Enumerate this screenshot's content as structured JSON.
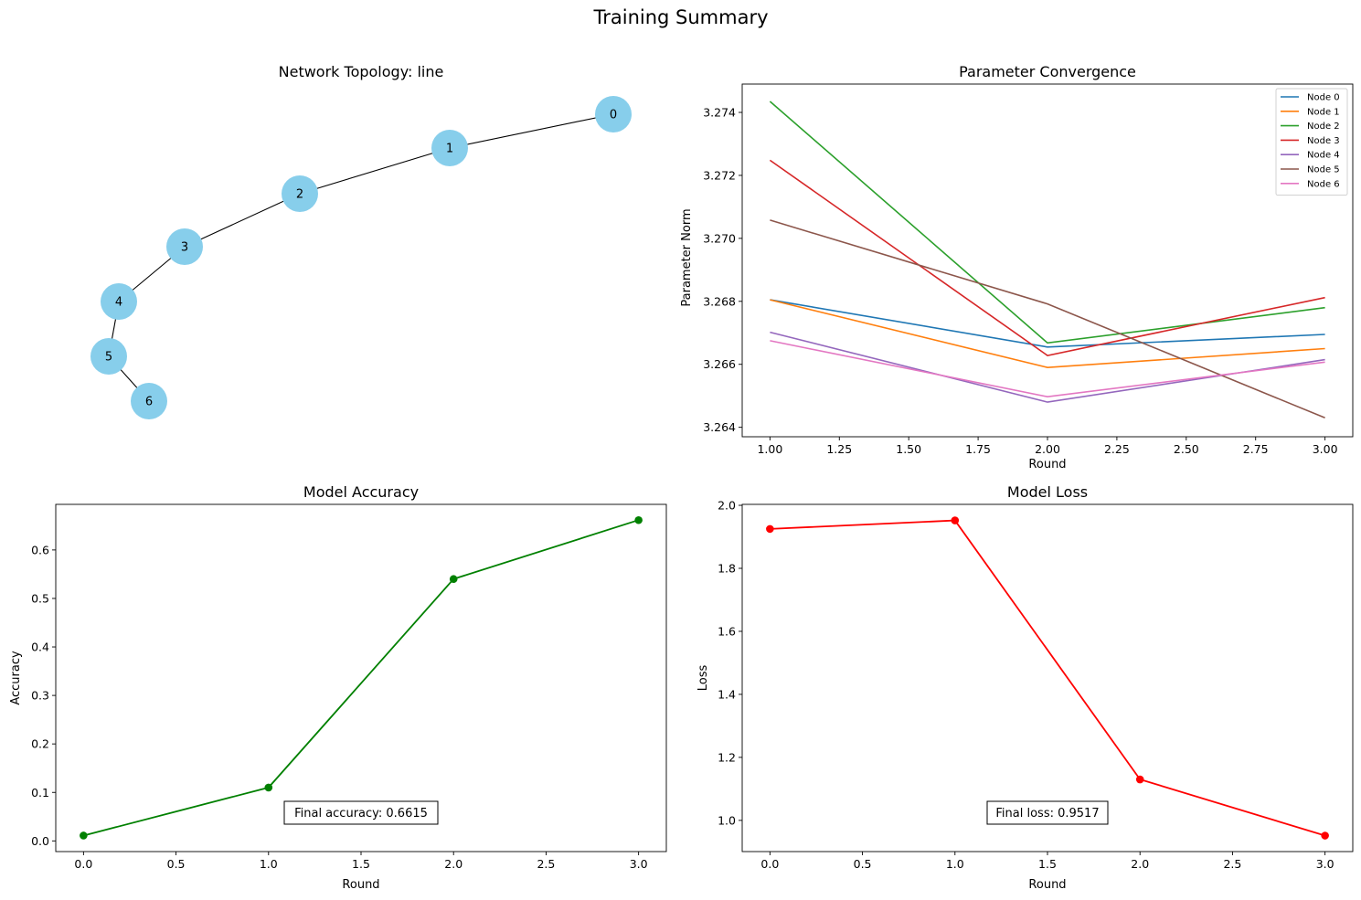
{
  "figure_title": "Training Summary",
  "chart_data": [
    {
      "type": "network",
      "title": "Network Topology: line",
      "nodes": [
        "0",
        "1",
        "2",
        "3",
        "4",
        "5",
        "6"
      ],
      "edges": [
        [
          "0",
          "1"
        ],
        [
          "1",
          "2"
        ],
        [
          "2",
          "3"
        ],
        [
          "3",
          "4"
        ],
        [
          "4",
          "5"
        ],
        [
          "5",
          "6"
        ]
      ],
      "node_color": "#87ceeb"
    },
    {
      "type": "line",
      "title": "Parameter Convergence",
      "xlabel": "Round",
      "ylabel": "Parameter Norm",
      "x": [
        1,
        2,
        3
      ],
      "xlim": [
        0.9,
        3.1
      ],
      "ylim": [
        3.2637,
        3.2749
      ],
      "xticks": [
        "1.00",
        "1.25",
        "1.50",
        "1.75",
        "2.00",
        "2.25",
        "2.50",
        "2.75",
        "3.00"
      ],
      "yticks": [
        "3.264",
        "3.266",
        "3.268",
        "3.270",
        "3.272",
        "3.274"
      ],
      "legend_position": "upper right",
      "series": [
        {
          "name": "Node 0",
          "color": "#1f77b4",
          "values": [
            3.26805,
            3.26655,
            3.26695
          ]
        },
        {
          "name": "Node 1",
          "color": "#ff7f0e",
          "values": [
            3.26805,
            3.2659,
            3.2665
          ]
        },
        {
          "name": "Node 2",
          "color": "#2ca02c",
          "values": [
            3.27435,
            3.26668,
            3.2678
          ]
        },
        {
          "name": "Node 3",
          "color": "#d62728",
          "values": [
            3.27248,
            3.26628,
            3.26812
          ]
        },
        {
          "name": "Node 4",
          "color": "#9467bd",
          "values": [
            3.26702,
            3.2648,
            3.26615
          ]
        },
        {
          "name": "Node 5",
          "color": "#8c564b",
          "values": [
            3.27058,
            3.26792,
            3.2643
          ]
        },
        {
          "name": "Node 6",
          "color": "#e377c2",
          "values": [
            3.26675,
            3.26497,
            3.26607
          ]
        }
      ]
    },
    {
      "type": "line",
      "title": "Model Accuracy",
      "xlabel": "Round",
      "ylabel": "Accuracy",
      "x": [
        0,
        1,
        2,
        3
      ],
      "values": [
        0.011,
        0.11,
        0.54,
        0.6615
      ],
      "color": "#008000",
      "marker": "circle",
      "xlim": [
        -0.15,
        3.15
      ],
      "ylim": [
        -0.022,
        0.694
      ],
      "xticks": [
        "0.0",
        "0.5",
        "1.0",
        "1.5",
        "2.0",
        "2.5",
        "3.0"
      ],
      "yticks": [
        "0.0",
        "0.1",
        "0.2",
        "0.3",
        "0.4",
        "0.5",
        "0.6"
      ],
      "annotation": "Final accuracy: 0.6615"
    },
    {
      "type": "line",
      "title": "Model Loss",
      "xlabel": "Round",
      "ylabel": "Loss",
      "x": [
        0,
        1,
        2,
        3
      ],
      "values": [
        1.925,
        1.952,
        1.13,
        0.9517
      ],
      "color": "#ff0000",
      "marker": "circle",
      "xlim": [
        -0.15,
        3.15
      ],
      "ylim": [
        0.901,
        2.003
      ],
      "xticks": [
        "0.0",
        "0.5",
        "1.0",
        "1.5",
        "2.0",
        "2.5",
        "3.0"
      ],
      "yticks": [
        "1.0",
        "1.2",
        "1.4",
        "1.6",
        "1.8",
        "2.0"
      ],
      "annotation": "Final loss: 0.9517"
    }
  ]
}
